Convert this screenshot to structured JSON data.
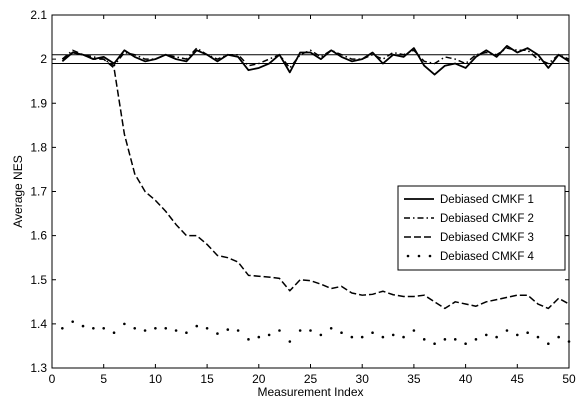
{
  "chart_data": {
    "type": "line",
    "title": "",
    "xlabel": "Measurement Index",
    "ylabel": "Average NES",
    "xlim": [
      0,
      50
    ],
    "ylim": [
      1.3,
      2.1
    ],
    "xticks": [
      "0",
      "5",
      "10",
      "15",
      "20",
      "25",
      "30",
      "35",
      "40",
      "45",
      "50"
    ],
    "yticks": [
      "1.3",
      "1.4",
      "1.5",
      "1.6",
      "1.7",
      "1.8",
      "1.9",
      "2",
      "2.1"
    ],
    "reference_lines": [
      1.99,
      2.01
    ],
    "grid": false,
    "legend_position": "right",
    "x": [
      1,
      2,
      3,
      4,
      5,
      6,
      7,
      8,
      9,
      10,
      11,
      12,
      13,
      14,
      15,
      16,
      17,
      18,
      19,
      20,
      21,
      22,
      23,
      24,
      25,
      26,
      27,
      28,
      29,
      30,
      31,
      32,
      33,
      34,
      35,
      36,
      37,
      38,
      39,
      40,
      41,
      42,
      43,
      44,
      45,
      46,
      47,
      48,
      49,
      50
    ],
    "series": [
      {
        "name": "Debiased CMKF 1",
        "style": "solid",
        "values": [
          1.995,
          2.015,
          2.01,
          2.0,
          2.005,
          1.99,
          2.02,
          2.005,
          1.995,
          2.0,
          2.01,
          2.0,
          1.995,
          2.02,
          2.01,
          1.995,
          2.01,
          2.005,
          1.975,
          1.98,
          1.99,
          2.01,
          1.97,
          2.015,
          2.015,
          2.0,
          2.02,
          2.005,
          1.995,
          2.0,
          2.015,
          1.99,
          2.01,
          2.005,
          2.025,
          1.985,
          1.965,
          1.985,
          1.99,
          1.98,
          2.005,
          2.02,
          2.005,
          2.03,
          2.015,
          2.025,
          2.01,
          1.98,
          2.01,
          1.995
        ]
      },
      {
        "name": "Debiased CMKF 2",
        "style": "dashdot",
        "values": [
          2.0,
          2.02,
          2.01,
          2.005,
          2.0,
          1.985,
          2.015,
          2.01,
          2.0,
          2.0,
          2.01,
          2.005,
          2.0,
          2.025,
          2.01,
          2.0,
          2.01,
          2.01,
          1.985,
          1.99,
          2.0,
          2.01,
          1.98,
          2.01,
          2.02,
          2.005,
          2.02,
          2.01,
          2.0,
          2.0,
          2.01,
          2.0,
          2.015,
          2.01,
          2.02,
          1.995,
          1.99,
          2.005,
          2.0,
          1.99,
          2.01,
          2.015,
          2.01,
          2.025,
          2.02,
          2.02,
          2.0,
          1.99,
          2.01,
          2.0
        ]
      },
      {
        "name": "Debiased CMKF 3",
        "style": "dashed",
        "values": [
          2.0,
          2.015,
          2.01,
          2.0,
          2.0,
          1.98,
          1.83,
          1.74,
          1.7,
          1.68,
          1.655,
          1.625,
          1.6,
          1.6,
          1.58,
          1.555,
          1.55,
          1.54,
          1.51,
          1.508,
          1.506,
          1.503,
          1.475,
          1.5,
          1.498,
          1.49,
          1.48,
          1.485,
          1.47,
          1.465,
          1.467,
          1.474,
          1.466,
          1.462,
          1.462,
          1.465,
          1.45,
          1.435,
          1.45,
          1.445,
          1.44,
          1.45,
          1.455,
          1.46,
          1.465,
          1.465,
          1.445,
          1.435,
          1.458,
          1.445
        ]
      },
      {
        "name": "Debiased CMKF 4",
        "style": "dotted-markers",
        "values": [
          1.39,
          1.405,
          1.395,
          1.39,
          1.39,
          1.38,
          1.4,
          1.39,
          1.385,
          1.39,
          1.39,
          1.385,
          1.38,
          1.395,
          1.39,
          1.378,
          1.387,
          1.385,
          1.365,
          1.37,
          1.375,
          1.385,
          1.36,
          1.385,
          1.385,
          1.375,
          1.39,
          1.38,
          1.37,
          1.37,
          1.38,
          1.37,
          1.375,
          1.37,
          1.385,
          1.365,
          1.355,
          1.365,
          1.365,
          1.355,
          1.365,
          1.375,
          1.37,
          1.385,
          1.375,
          1.38,
          1.37,
          1.355,
          1.37,
          1.36
        ]
      }
    ]
  }
}
